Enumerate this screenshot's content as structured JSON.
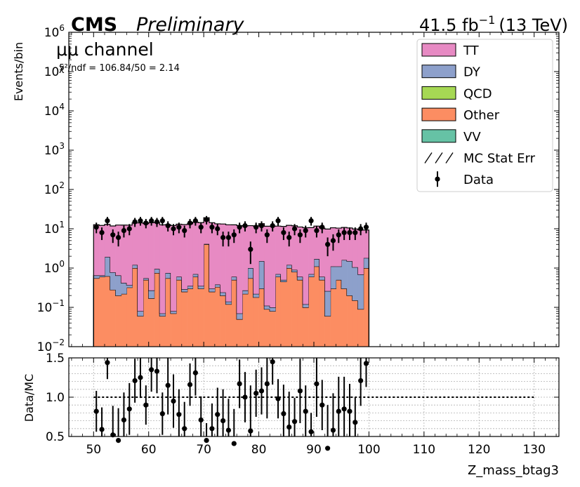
{
  "header": {
    "cms": "CMS",
    "preliminary": "Preliminary",
    "lumi": "41.5 fb",
    "lumi_exp": "−1",
    "energy": "(13 TeV)"
  },
  "annotations": {
    "channel": "μμ channel",
    "chi2": "χ²/ndf = 106.84/50 = 2.14"
  },
  "colors": {
    "TT": "#e78ac3",
    "DY": "#8da0cb",
    "QCD": "#a6d854",
    "Other": "#fc8d62",
    "VV": "#66c2a5",
    "ref_line": "#000000",
    "grid": "#b0b0b0"
  },
  "chart_data": [
    {
      "type": "bar",
      "stacked": true,
      "xlabel": "Z_mass_btag3",
      "ylabel": "Events/bin",
      "xlim": [
        45.5,
        134.5
      ],
      "ylim": [
        0.01,
        1000000
      ],
      "yscale": "log",
      "xticks": [
        50,
        60,
        70,
        80,
        90,
        100,
        110,
        120,
        130
      ],
      "yticks": [
        0.01,
        0.1,
        1,
        10,
        100,
        1000,
        10000,
        100000,
        1000000
      ],
      "ytick_labels": [
        {
          "base": "10",
          "exp": "−2"
        },
        {
          "base": "10",
          "exp": "−1"
        },
        {
          "base": "10",
          "exp": "0"
        },
        {
          "base": "10",
          "exp": "1"
        },
        {
          "base": "10",
          "exp": "2"
        },
        {
          "base": "10",
          "exp": "3"
        },
        {
          "base": "10",
          "exp": "4"
        },
        {
          "base": "10",
          "exp": "5"
        },
        {
          "base": "10",
          "exp": "6"
        }
      ],
      "legend_position": "top-right",
      "legend": [
        "TT",
        "DY",
        "QCD",
        "Other",
        "VV",
        "MC Stat Err",
        "Data"
      ],
      "bin_edges": [
        50,
        51,
        52,
        53,
        54,
        55,
        56,
        57,
        58,
        59,
        60,
        61,
        62,
        63,
        64,
        65,
        66,
        67,
        68,
        69,
        70,
        71,
        72,
        73,
        74,
        75,
        76,
        77,
        78,
        79,
        80,
        81,
        82,
        83,
        84,
        85,
        86,
        87,
        88,
        89,
        90,
        91,
        92,
        93,
        94,
        95,
        96,
        97,
        98,
        99,
        100
      ],
      "series": [
        {
          "name": "Other",
          "values": [
            0.55,
            0.6,
            0.62,
            0.28,
            0.2,
            0.22,
            0.32,
            1.0,
            0.06,
            0.5,
            0.17,
            0.75,
            0.06,
            0.55,
            0.07,
            0.5,
            0.25,
            0.3,
            0.6,
            0.3,
            4.0,
            0.25,
            0.33,
            0.2,
            0.12,
            0.5,
            0.05,
            0.22,
            0.55,
            0.18,
            0.3,
            0.09,
            0.08,
            0.6,
            0.45,
            1.0,
            0.8,
            0.5,
            0.1,
            0.6,
            1.1,
            0.5,
            0.06,
            0.3,
            0.5,
            0.3,
            0.2,
            0.15,
            0.09,
            1.0
          ]
        },
        {
          "name": "DY",
          "values": [
            0.1,
            0.05,
            1.3,
            0.5,
            0.45,
            0.2,
            0.05,
            0.2,
            0.02,
            0.05,
            0.1,
            0.2,
            0.01,
            0.2,
            0.01,
            0.1,
            0.04,
            0.05,
            0.1,
            0.05,
            0.1,
            0.05,
            0.05,
            0.04,
            0.02,
            0.1,
            0.02,
            0.05,
            0.45,
            0.04,
            1.2,
            0.02,
            0.02,
            0.1,
            0.05,
            0.2,
            0.1,
            0.1,
            0.02,
            0.1,
            0.6,
            0.1,
            0.2,
            0.8,
            0.6,
            1.3,
            1.3,
            0.9,
            0.6,
            0.8
          ]
        },
        {
          "name": "TT",
          "values": [
            12,
            11.5,
            11,
            11,
            11.8,
            12,
            12,
            13,
            14,
            13,
            14,
            13.5,
            12.5,
            12,
            12,
            12.5,
            12.5,
            13,
            14,
            14,
            15,
            14,
            13,
            13,
            12.5,
            12,
            12,
            11.5,
            11,
            11.5,
            12,
            11.5,
            11.5,
            11,
            11,
            11,
            11,
            10.5,
            10.5,
            10,
            10,
            9.8,
            9.6,
            9.5,
            9.3,
            9.2,
            9,
            8.8,
            8.6,
            7.5
          ]
        },
        {
          "name": "Data",
          "values": [
            11,
            8,
            16,
            7,
            6,
            9,
            10,
            15,
            16,
            14,
            16,
            15,
            16,
            12,
            10,
            11,
            9,
            14,
            16,
            11,
            17,
            11,
            10,
            6,
            6,
            7,
            11,
            12,
            3,
            11,
            12,
            7,
            12,
            16,
            8,
            6,
            10,
            7,
            9,
            16,
            9,
            11,
            4,
            5,
            7,
            8,
            8,
            8,
            10,
            11
          ]
        }
      ]
    },
    {
      "type": "scatter",
      "ylabel": "Data/MC",
      "xlabel": "Z_mass_btag3",
      "xlim": [
        45.5,
        134.5
      ],
      "ylim": [
        0.5,
        1.5
      ],
      "yticks": [
        0.5,
        1.0,
        1.5
      ],
      "ytick_labels": [
        "0.5",
        "1.0",
        "1.5"
      ],
      "xticks": [
        50,
        60,
        70,
        80,
        90,
        100,
        110,
        120,
        130
      ],
      "xtick_labels": [
        "50",
        "60",
        "70",
        "80",
        "90",
        "100",
        "110",
        "120",
        "130"
      ],
      "grid": true,
      "reference_line": 1.0,
      "x": [
        50.5,
        51.5,
        52.5,
        53.5,
        54.5,
        55.5,
        56.5,
        57.5,
        58.5,
        59.5,
        60.5,
        61.5,
        62.5,
        63.5,
        64.5,
        65.5,
        66.5,
        67.5,
        68.5,
        69.5,
        70.5,
        71.5,
        72.5,
        73.5,
        74.5,
        75.5,
        76.5,
        77.5,
        78.5,
        79.5,
        80.5,
        81.5,
        82.5,
        83.5,
        84.5,
        85.5,
        86.5,
        87.5,
        88.5,
        89.5,
        90.5,
        91.5,
        92.5,
        93.5,
        94.5,
        95.5,
        96.5,
        97.5,
        98.5,
        99.5
      ],
      "ratio": [
        0.82,
        0.59,
        1.44,
        0.52,
        0.45,
        0.71,
        0.85,
        1.21,
        1.25,
        0.9,
        1.35,
        1.33,
        0.79,
        1.15,
        0.95,
        0.78,
        0.6,
        1.16,
        1.31,
        0.71,
        0.45,
        0.6,
        0.78,
        0.7,
        0.58,
        0.41,
        1.17,
        1.0,
        0.57,
        1.05,
        1.08,
        1.17,
        1.45,
        0.98,
        0.79,
        0.62,
        0.69,
        1.08,
        0.82,
        0.56,
        1.17,
        0.9,
        0.35,
        0.58,
        0.82,
        0.85,
        0.82,
        0.68,
        1.21,
        1.43
      ],
      "err": [
        0.26,
        0.28,
        0.21,
        0.37,
        0.41,
        0.35,
        0.33,
        0.28,
        0.26,
        0.25,
        0.28,
        0.28,
        0.27,
        0.37,
        0.34,
        0.32,
        0.34,
        0.27,
        0.29,
        0.3,
        0.22,
        0.32,
        0.34,
        0.4,
        0.4,
        0.44,
        0.31,
        0.32,
        0.58,
        0.3,
        0.3,
        0.44,
        0.29,
        0.25,
        0.37,
        0.45,
        0.3,
        0.41,
        0.33,
        0.24,
        0.42,
        0.32,
        0.55,
        0.47,
        0.44,
        0.41,
        0.35,
        0.32,
        0.32,
        0.3
      ]
    }
  ]
}
